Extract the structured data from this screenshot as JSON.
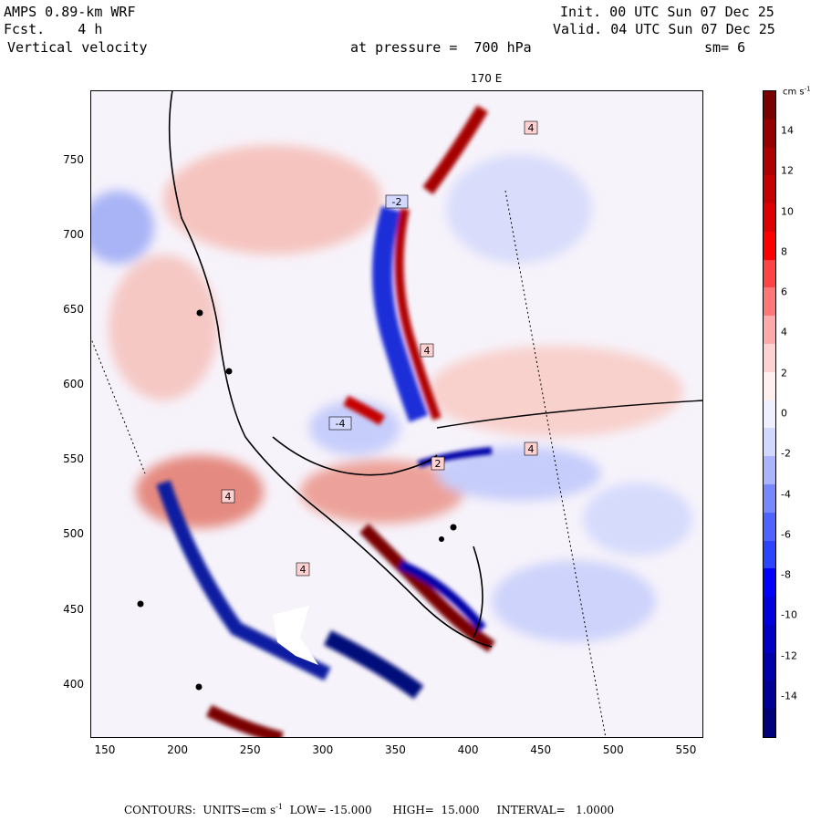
{
  "header": {
    "model": "AMPS 0.89-km WRF",
    "forecast": "Fcst.    4 h",
    "field": "Vertical velocity",
    "init": "Init. 00 UTC Sun 07 Dec 25",
    "valid": "Valid. 04 UTC Sun 07 Dec 25",
    "pressure": "at pressure =  700 hPa",
    "smoothing": "sm= 6",
    "meridian_label": "170 E"
  },
  "colorbar": {
    "unit": "cm s",
    "unit_exp": "-1",
    "labels": [
      "14",
      "12",
      "10",
      "8",
      "6",
      "4",
      "2",
      "0",
      "-2",
      "-4",
      "-6",
      "-8",
      "-10",
      "-12",
      "-14"
    ],
    "colors": [
      "#7a0000",
      "#940000",
      "#ad0000",
      "#c40000",
      "#dc0000",
      "#ff0000",
      "#ff4444",
      "#ff7777",
      "#ffaaaa",
      "#ffd2d2",
      "#ffefef",
      "#eef0ff",
      "#d2d8ff",
      "#aab4ff",
      "#7787ff",
      "#4f63ff",
      "#2a44ff",
      "#0000ff",
      "#0000dc",
      "#0000c4",
      "#0000a8",
      "#000094",
      "#00007a"
    ]
  },
  "chart_data": {
    "type": "heatmap",
    "title": "Vertical velocity at pressure = 700 hPa",
    "x_ticks": [
      "150",
      "200",
      "250",
      "300",
      "350",
      "400",
      "450",
      "500",
      "550"
    ],
    "y_ticks": [
      "750",
      "700",
      "650",
      "600",
      "550",
      "500",
      "450",
      "400"
    ],
    "xlim": [
      140,
      562
    ],
    "ylim": [
      364,
      796
    ],
    "units": "cm s-1",
    "contour_low": -15.0,
    "contour_high": 15.0,
    "contour_interval": 1.0,
    "labelled_contours": [
      "4",
      "-4",
      "2",
      "-2"
    ]
  },
  "footer": {
    "contours_label": "CONTOURS:",
    "units_label": "UNITS=cm s",
    "units_exp": "-1",
    "low": "LOW= -15.000",
    "high": "HIGH=  15.000",
    "interval": "INTERVAL=   1.0000"
  }
}
